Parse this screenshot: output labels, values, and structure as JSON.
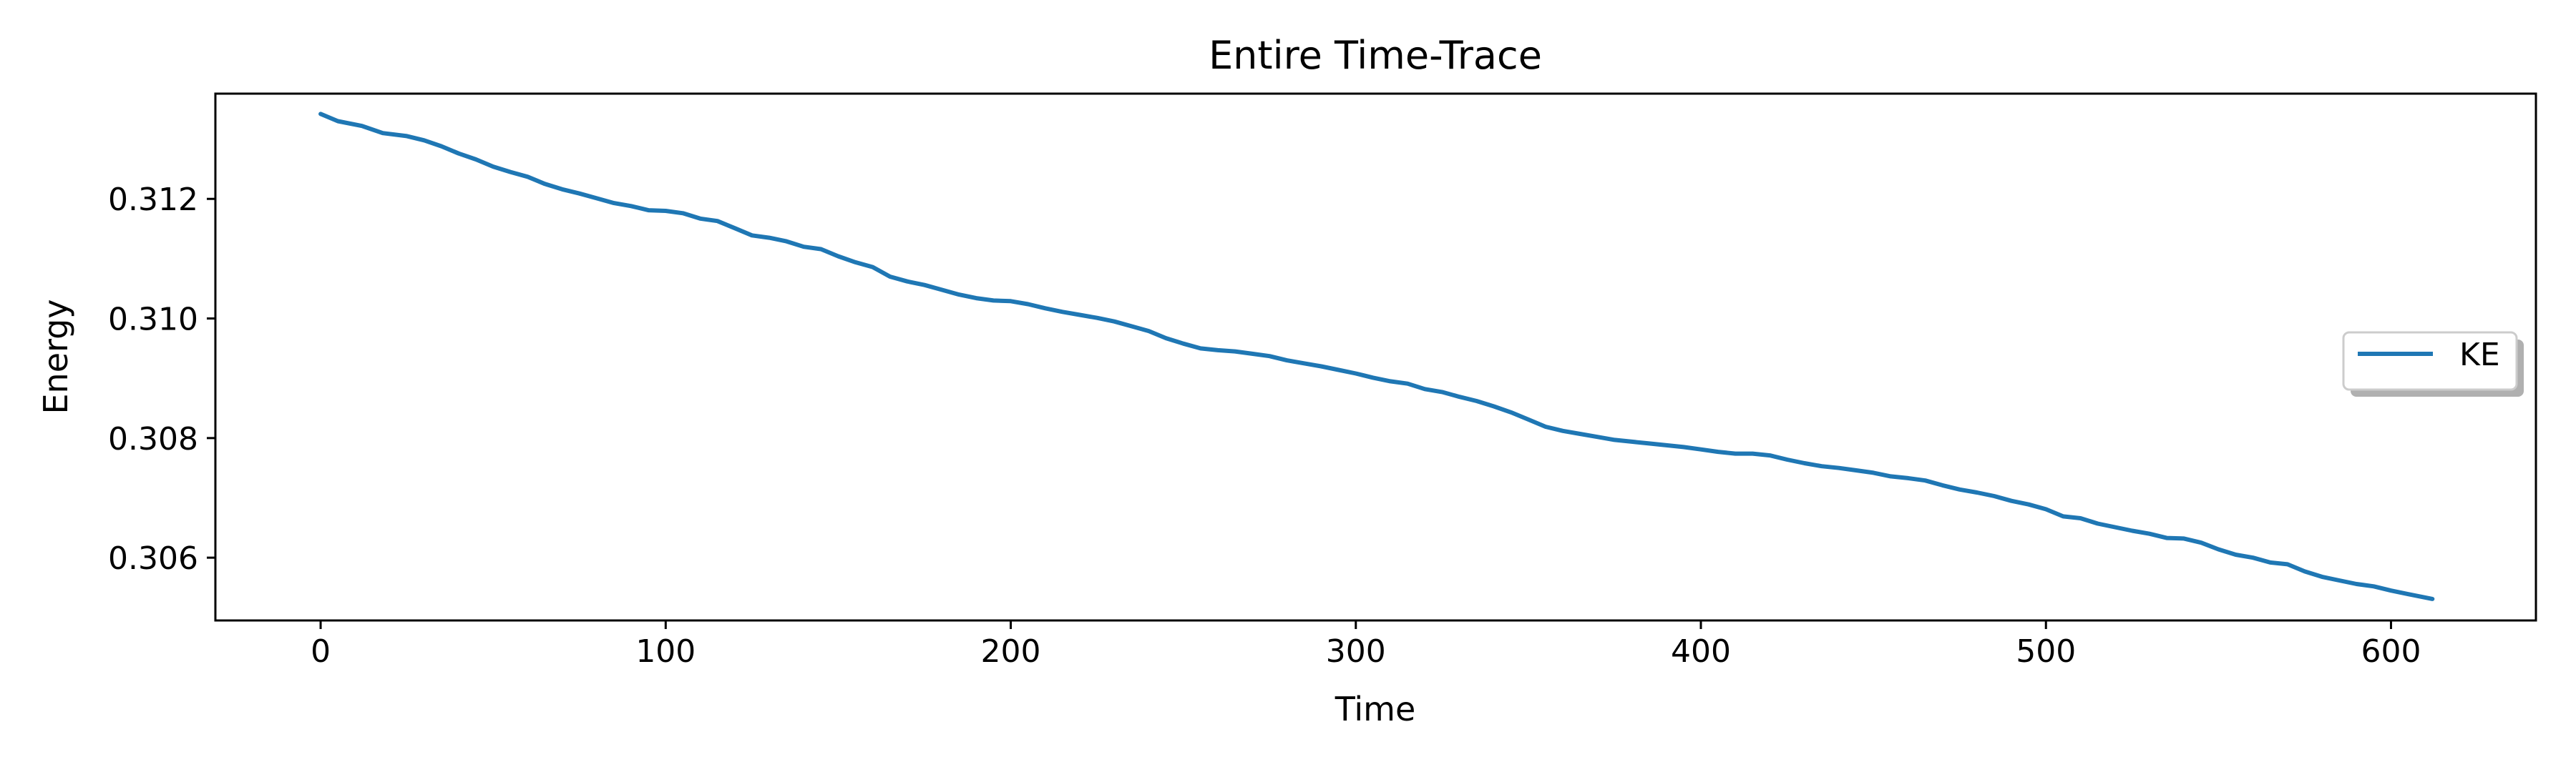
{
  "chart_data": {
    "type": "line",
    "title": "Entire Time-Trace",
    "xlabel": "Time",
    "ylabel": "Energy",
    "xlim": [
      -30.5,
      642
    ],
    "ylim": [
      0.30495,
      0.31376
    ],
    "xticks": [
      0,
      100,
      200,
      300,
      400,
      500,
      600
    ],
    "xtick_labels": [
      "0",
      "100",
      "200",
      "300",
      "400",
      "500",
      "600"
    ],
    "yticks": [
      0.306,
      0.308,
      0.31,
      0.312
    ],
    "ytick_labels": [
      "0.306",
      "0.308",
      "0.310",
      "0.312"
    ],
    "grid": false,
    "legend_position": "center-right",
    "series": [
      {
        "name": "KE",
        "color": "#1f77b4",
        "x": [
          0,
          5,
          12,
          18,
          25,
          30,
          35,
          40,
          45,
          50,
          55,
          60,
          65,
          70,
          75,
          80,
          85,
          90,
          95,
          100,
          105,
          110,
          115,
          120,
          125,
          130,
          135,
          140,
          145,
          150,
          155,
          160,
          165,
          170,
          175,
          180,
          185,
          190,
          195,
          200,
          205,
          210,
          215,
          220,
          225,
          230,
          235,
          240,
          245,
          250,
          255,
          260,
          265,
          270,
          275,
          280,
          285,
          290,
          295,
          300,
          305,
          310,
          315,
          320,
          325,
          330,
          335,
          340,
          345,
          350,
          355,
          360,
          365,
          370,
          375,
          380,
          385,
          390,
          395,
          400,
          405,
          410,
          415,
          420,
          425,
          430,
          435,
          440,
          445,
          450,
          455,
          460,
          465,
          470,
          475,
          480,
          485,
          490,
          495,
          500,
          505,
          510,
          515,
          520,
          525,
          530,
          535,
          540,
          545,
          550,
          555,
          560,
          565,
          570,
          575,
          580,
          585,
          590,
          595,
          600,
          605,
          612
        ],
        "values": [
          0.31342,
          0.3133,
          0.31322,
          0.3131,
          0.31305,
          0.31298,
          0.31288,
          0.31276,
          0.31266,
          0.31254,
          0.31245,
          0.31237,
          0.31225,
          0.31216,
          0.31209,
          0.31201,
          0.31193,
          0.31188,
          0.31181,
          0.3118,
          0.31176,
          0.31167,
          0.31163,
          0.31151,
          0.31139,
          0.31135,
          0.31129,
          0.3112,
          0.31116,
          0.31104,
          0.31094,
          0.31086,
          0.3107,
          0.31062,
          0.31056,
          0.31048,
          0.3104,
          0.31034,
          0.3103,
          0.31029,
          0.31024,
          0.31017,
          0.31011,
          0.31006,
          0.31001,
          0.30995,
          0.30987,
          0.30979,
          0.30967,
          0.30958,
          0.3095,
          0.30947,
          0.30945,
          0.30941,
          0.30937,
          0.3093,
          0.30925,
          0.3092,
          0.30914,
          0.30908,
          0.30901,
          0.30895,
          0.30891,
          0.30882,
          0.30877,
          0.30869,
          0.30862,
          0.30853,
          0.30843,
          0.30831,
          0.30819,
          0.30812,
          0.30807,
          0.30802,
          0.30797,
          0.30794,
          0.30791,
          0.30788,
          0.30785,
          0.30781,
          0.30777,
          0.30774,
          0.30774,
          0.30771,
          0.30764,
          0.30758,
          0.30753,
          0.3075,
          0.30746,
          0.30742,
          0.30736,
          0.30733,
          0.30729,
          0.30721,
          0.30714,
          0.30709,
          0.30703,
          0.30695,
          0.30689,
          0.30681,
          0.30669,
          0.30666,
          0.30657,
          0.30651,
          0.30645,
          0.3064,
          0.30633,
          0.30632,
          0.30625,
          0.30614,
          0.30605,
          0.306,
          0.30592,
          0.30589,
          0.30577,
          0.30568,
          0.30562,
          0.30556,
          0.30552,
          0.30545,
          0.30539,
          0.30531
        ]
      }
    ]
  }
}
